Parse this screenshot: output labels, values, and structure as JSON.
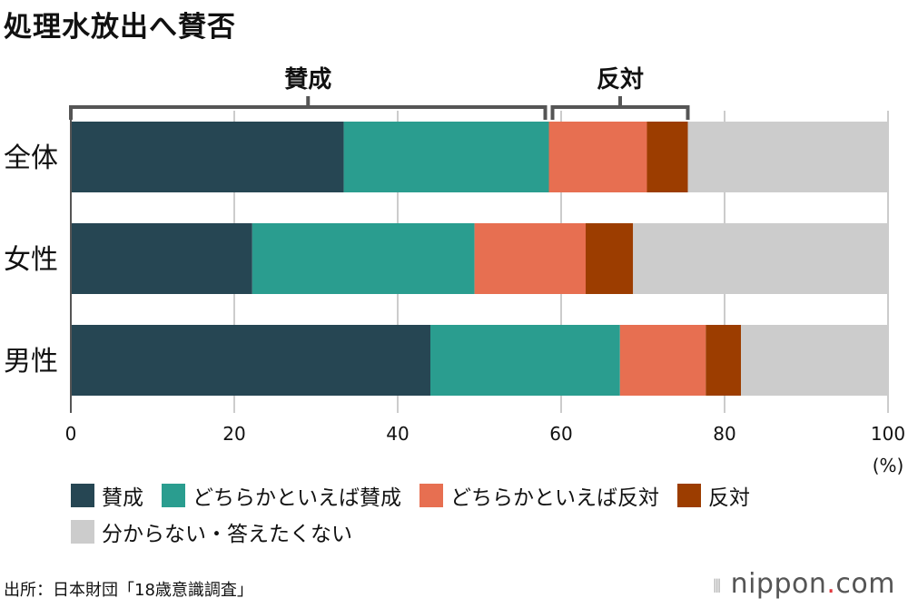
{
  "title": "処理水放出へ賛否",
  "source": "出所：日本財団「18歳意識調査」",
  "logo": {
    "text": "nippon.com",
    "icon": "sound-bars-icon"
  },
  "chart_data": {
    "type": "bar",
    "orientation": "horizontal",
    "stacked": true,
    "categories": [
      "全体",
      "女性",
      "男性"
    ],
    "series": [
      {
        "name": "賛成",
        "color": "#264653",
        "values": [
          33.4,
          22.2,
          44.0
        ]
      },
      {
        "name": "どちらかといえば賛成",
        "color": "#2a9d8f",
        "values": [
          25.1,
          27.2,
          23.2
        ]
      },
      {
        "name": "どちらかといえば反対",
        "color": "#e76f51",
        "values": [
          12.0,
          13.6,
          10.5
        ]
      },
      {
        "name": "反対",
        "color": "#9c3d00",
        "values": [
          5.0,
          5.8,
          4.3
        ]
      },
      {
        "name": "分からない・答えたくない",
        "color": "#cccccc",
        "values": [
          24.5,
          31.2,
          18.0
        ]
      }
    ],
    "xlim": [
      0,
      100
    ],
    "xticks": [
      "0",
      "20",
      "40",
      "60",
      "80",
      "100"
    ],
    "xunit": "(%)",
    "grid": true,
    "legend": "bottom",
    "brackets": [
      {
        "label": "賛成",
        "from": 0,
        "to": 58.5
      },
      {
        "label": "反対",
        "from": 58.5,
        "to": 75.5
      }
    ]
  }
}
